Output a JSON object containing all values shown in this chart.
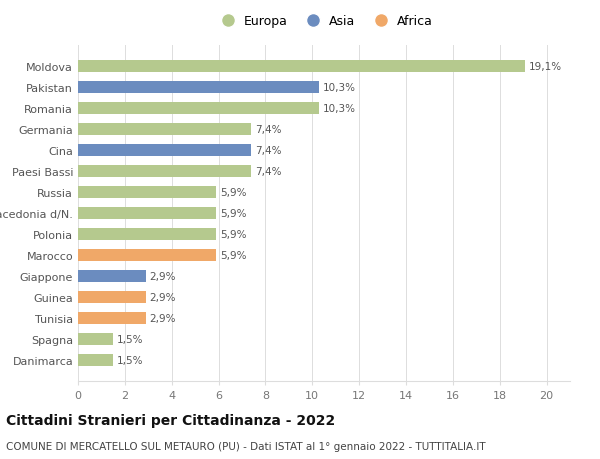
{
  "categories": [
    "Danimarca",
    "Spagna",
    "Tunisia",
    "Guinea",
    "Giappone",
    "Marocco",
    "Polonia",
    "Macedonia d/N.",
    "Russia",
    "Paesi Bassi",
    "Cina",
    "Germania",
    "Romania",
    "Pakistan",
    "Moldova"
  ],
  "values": [
    1.5,
    1.5,
    2.9,
    2.9,
    2.9,
    5.9,
    5.9,
    5.9,
    5.9,
    7.4,
    7.4,
    7.4,
    10.3,
    10.3,
    19.1
  ],
  "labels": [
    "1,5%",
    "1,5%",
    "2,9%",
    "2,9%",
    "2,9%",
    "5,9%",
    "5,9%",
    "5,9%",
    "5,9%",
    "7,4%",
    "7,4%",
    "7,4%",
    "10,3%",
    "10,3%",
    "19,1%"
  ],
  "colors": [
    "#b5c98e",
    "#b5c98e",
    "#f0a868",
    "#f0a868",
    "#6b8cbf",
    "#f0a868",
    "#b5c98e",
    "#b5c98e",
    "#b5c98e",
    "#b5c98e",
    "#6b8cbf",
    "#b5c98e",
    "#b5c98e",
    "#6b8cbf",
    "#b5c98e"
  ],
  "legend_labels": [
    "Europa",
    "Asia",
    "Africa"
  ],
  "legend_colors": [
    "#b5c98e",
    "#6b8cbf",
    "#f0a868"
  ],
  "title": "Cittadini Stranieri per Cittadinanza - 2022",
  "subtitle": "COMUNE DI MERCATELLO SUL METAURO (PU) - Dati ISTAT al 1° gennaio 2022 - TUTTITALIA.IT",
  "xlim": [
    0,
    21
  ],
  "xticks": [
    0,
    2,
    4,
    6,
    8,
    10,
    12,
    14,
    16,
    18,
    20
  ],
  "background_color": "#ffffff",
  "bar_height": 0.55,
  "label_fontsize": 7.5,
  "tick_fontsize": 8,
  "title_fontsize": 10,
  "subtitle_fontsize": 7.5,
  "legend_fontsize": 9
}
